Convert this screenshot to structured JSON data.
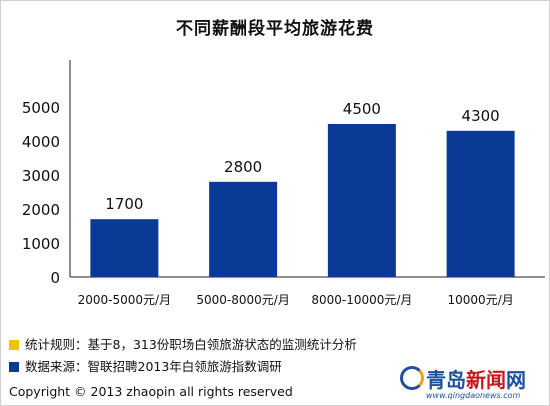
{
  "chart_data": {
    "type": "bar",
    "title": "不同薪酬段平均旅游花费",
    "categories": [
      "2000-5000元/月",
      "5000-8000元/月",
      "8000-10000元/月",
      "10000元/月"
    ],
    "values": [
      1700,
      2800,
      4500,
      4300
    ],
    "data_labels": [
      "1700",
      "2800",
      "4500",
      "4300"
    ],
    "y_ticks": [
      "0",
      "1000",
      "2000",
      "3000",
      "4000",
      "5000"
    ],
    "y_tick_values": [
      0,
      1000,
      2000,
      3000,
      4000,
      5000
    ],
    "ylim": [
      0,
      5500
    ],
    "xlabel": "",
    "ylabel": "",
    "grid": false,
    "bar_color": "#0a3a96"
  },
  "notes": [
    {
      "marker_color": "#f2c200",
      "text": "统计规则：基于8，313份职场白领旅游状态的监测统计分析"
    },
    {
      "marker_color": "#0a3a96",
      "text": "数据来源：智联招聘2013年白领旅游指数调研"
    }
  ],
  "copyright": "Copyright © 2013 zhaopin all rights reserved",
  "watermark": {
    "name_part1": "青岛",
    "name_part2": "新闻",
    "name_part3": "网",
    "url": "www.qingdaonews.com"
  }
}
